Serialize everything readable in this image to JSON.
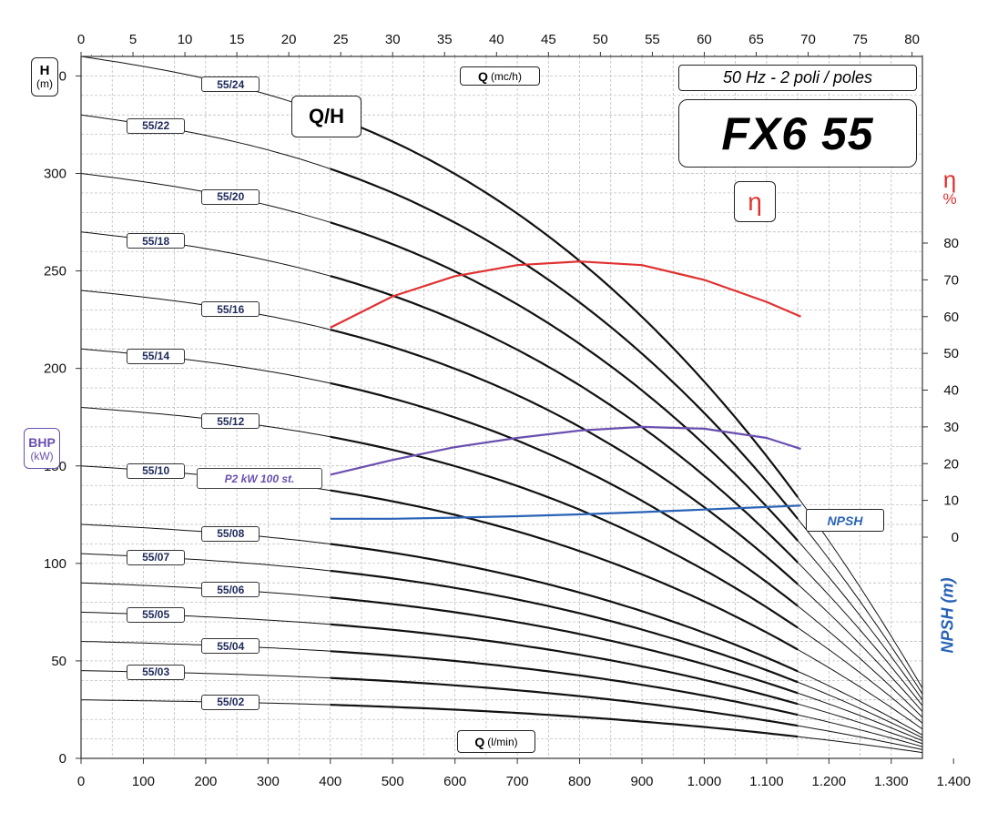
{
  "chart_data": {
    "type": "line",
    "title": "FX6 55",
    "subtitle": "50 Hz - 2 poli / poles",
    "curve_label": "Q/H",
    "eta_badge": "η",
    "colors": {
      "head": "#111111",
      "efficiency": "#e03131",
      "power": "#6a4fb0",
      "npsh": "#2a63b5",
      "grid": "#b5b5b5"
    },
    "axes": {
      "y_left": {
        "label": "H",
        "unit": "(m)",
        "range": [
          0,
          360
        ],
        "ticks": [
          "0",
          "50",
          "100",
          "150",
          "200",
          "250",
          "300",
          "350"
        ]
      },
      "x_bottom": {
        "label": "Q",
        "unit": "(l/min)",
        "range": [
          0,
          1350
        ],
        "ticks": [
          "0",
          "100",
          "200",
          "300",
          "400",
          "500",
          "600",
          "700",
          "800",
          "900",
          "1.000",
          "1.100",
          "1.200",
          "1.300",
          "1.400"
        ]
      },
      "x_top": {
        "label": "Q",
        "unit": "(mc/h)",
        "range": [
          0,
          81
        ],
        "ticks": [
          "0",
          "5",
          "10",
          "15",
          "20",
          "25",
          "30",
          "35",
          "40",
          "45",
          "50",
          "55",
          "60",
          "65",
          "70",
          "75",
          "80"
        ]
      },
      "y_right_eta": {
        "label": "η",
        "unit": "%",
        "range": [
          0,
          80
        ],
        "ticks": [
          "0",
          "10",
          "20",
          "30",
          "40",
          "50",
          "60",
          "70",
          "80"
        ]
      },
      "y_left_bhp": {
        "label": "BHP",
        "unit": "(kW)"
      },
      "y_right_npsh": {
        "label": "NPSH (m)"
      }
    },
    "series": [
      {
        "name": "55/02",
        "shutoff": 30
      },
      {
        "name": "55/03",
        "shutoff": 45
      },
      {
        "name": "55/04",
        "shutoff": 60
      },
      {
        "name": "55/05",
        "shutoff": 75
      },
      {
        "name": "55/06",
        "shutoff": 90
      },
      {
        "name": "55/07",
        "shutoff": 105
      },
      {
        "name": "55/08",
        "shutoff": 120
      },
      {
        "name": "55/10",
        "shutoff": 150
      },
      {
        "name": "55/12",
        "shutoff": 180
      },
      {
        "name": "55/14",
        "shutoff": 210
      },
      {
        "name": "55/16",
        "shutoff": 240
      },
      {
        "name": "55/18",
        "shutoff": 270
      },
      {
        "name": "55/20",
        "shutoff": 300
      },
      {
        "name": "55/22",
        "shutoff": 330
      },
      {
        "name": "55/24",
        "shutoff": 360
      }
    ],
    "efficiency": {
      "x": [
        400,
        500,
        600,
        700,
        800,
        900,
        1000,
        1100,
        1155
      ],
      "eta": [
        57,
        65.5,
        71,
        74,
        75,
        74,
        70,
        64,
        60
      ]
    },
    "power": {
      "name": "P2 kW 100 st.",
      "x": [
        400,
        500,
        600,
        700,
        800,
        900,
        1000,
        1100,
        1155
      ],
      "eta": [
        17,
        21,
        24.5,
        27,
        29,
        30,
        29.5,
        27,
        24
      ]
    },
    "npsh": {
      "name": "NPSH",
      "x": [
        400,
        500,
        600,
        700,
        800,
        900,
        1000,
        1100,
        1155
      ],
      "eta": [
        5,
        5,
        5.3,
        5.7,
        6.2,
        6.8,
        7.5,
        8.2,
        8.6
      ]
    }
  }
}
